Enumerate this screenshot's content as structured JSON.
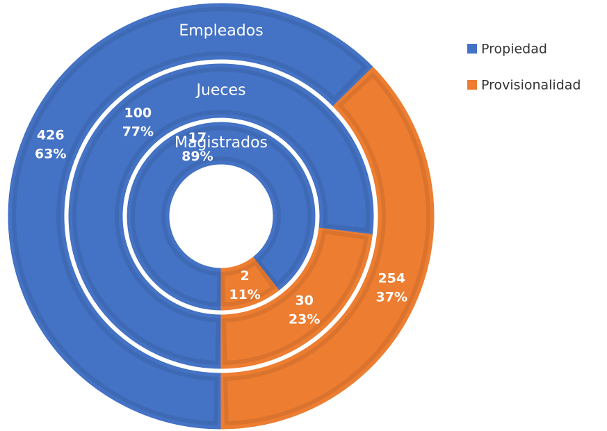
{
  "chart_data": {
    "type": "donut",
    "categories": [
      "Empleados",
      "Jueces",
      "Magistrados"
    ],
    "start_angle": 180,
    "legend": "right",
    "series": [
      {
        "name": "Propiedad",
        "color": "#4472c4",
        "values": [
          426,
          100,
          17
        ],
        "percents": [
          63,
          77,
          89
        ],
        "percent_labels": [
          "63%",
          "77%",
          "89%"
        ]
      },
      {
        "name": "Provisionalidad",
        "color": "#ed7d31",
        "values": [
          254,
          30,
          2
        ],
        "percents": [
          37,
          23,
          11
        ],
        "percent_labels": [
          "37%",
          "23%",
          "11%"
        ]
      }
    ]
  }
}
